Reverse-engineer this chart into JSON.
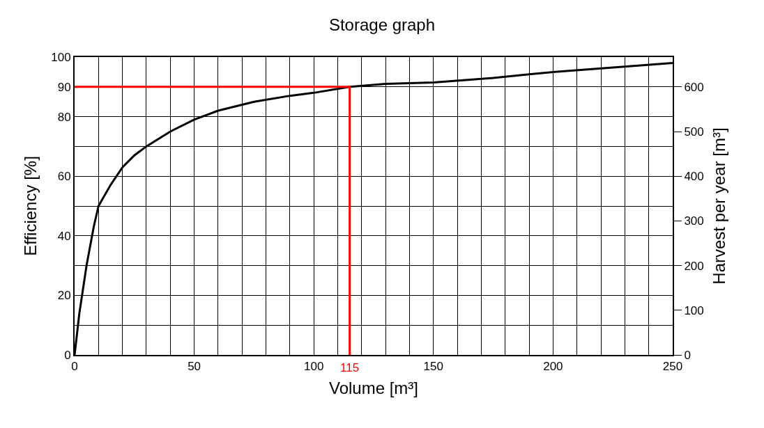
{
  "chart_data": {
    "type": "line",
    "title": "Storage graph",
    "xlabel": "Volume [m³]",
    "ylabel": "Efficiency [%]",
    "y2label": "Harvest per year [m³]",
    "series": [
      {
        "color": "#000000",
        "x": [
          0,
          2,
          5,
          8,
          10,
          15,
          20,
          25,
          30,
          40,
          50,
          60,
          75,
          90,
          100,
          115,
          130,
          150,
          175,
          200,
          225,
          250
        ],
        "values": [
          0,
          14,
          30,
          43,
          50,
          57,
          63,
          67,
          70,
          75,
          79,
          82,
          85,
          87,
          88,
          90,
          91,
          91.5,
          93,
          95,
          96.5,
          98
        ]
      },
      {
        "color": "#ff0000",
        "x": [
          0,
          115,
          115
        ],
        "values": [
          90,
          90,
          0
        ]
      }
    ],
    "annotations": [
      {
        "text": "115",
        "x": 115,
        "y": 0
      }
    ],
    "xlim": [
      0,
      250
    ],
    "xticks": [
      0,
      {
        "value": 10,
        "label": null
      },
      {
        "value": 20,
        "label": null
      },
      {
        "value": 30,
        "label": null
      },
      {
        "value": 40,
        "label": null
      },
      50,
      {
        "value": 60,
        "label": null
      },
      {
        "value": 70,
        "label": null
      },
      {
        "value": 80,
        "label": null
      },
      {
        "value": 90,
        "label": null
      },
      100,
      {
        "value": 110,
        "label": null
      },
      {
        "value": 120,
        "label": null
      },
      {
        "value": 130,
        "label": null
      },
      {
        "value": 140,
        "label": null
      },
      150,
      {
        "value": 160,
        "label": null
      },
      {
        "value": 170,
        "label": null
      },
      {
        "value": 180,
        "label": null
      },
      {
        "value": 190,
        "label": null
      },
      200,
      {
        "value": 210,
        "label": null
      },
      {
        "value": 220,
        "label": null
      },
      {
        "value": 230,
        "label": null
      },
      {
        "value": 240,
        "label": null
      },
      250
    ],
    "ylim": [
      0,
      100
    ],
    "yticks": [
      0,
      {
        "value": 10,
        "label": null
      },
      20,
      {
        "value": 30,
        "label": null
      },
      40,
      {
        "value": 50,
        "label": null
      },
      60,
      {
        "value": 70,
        "label": null
      },
      80,
      90,
      100
    ],
    "y2lim": [
      0,
      666.7
    ],
    "y2ticks": [
      0,
      100,
      200,
      300,
      400,
      500,
      600
    ],
    "grid": true,
    "marker": "none",
    "line_style": "solid"
  }
}
